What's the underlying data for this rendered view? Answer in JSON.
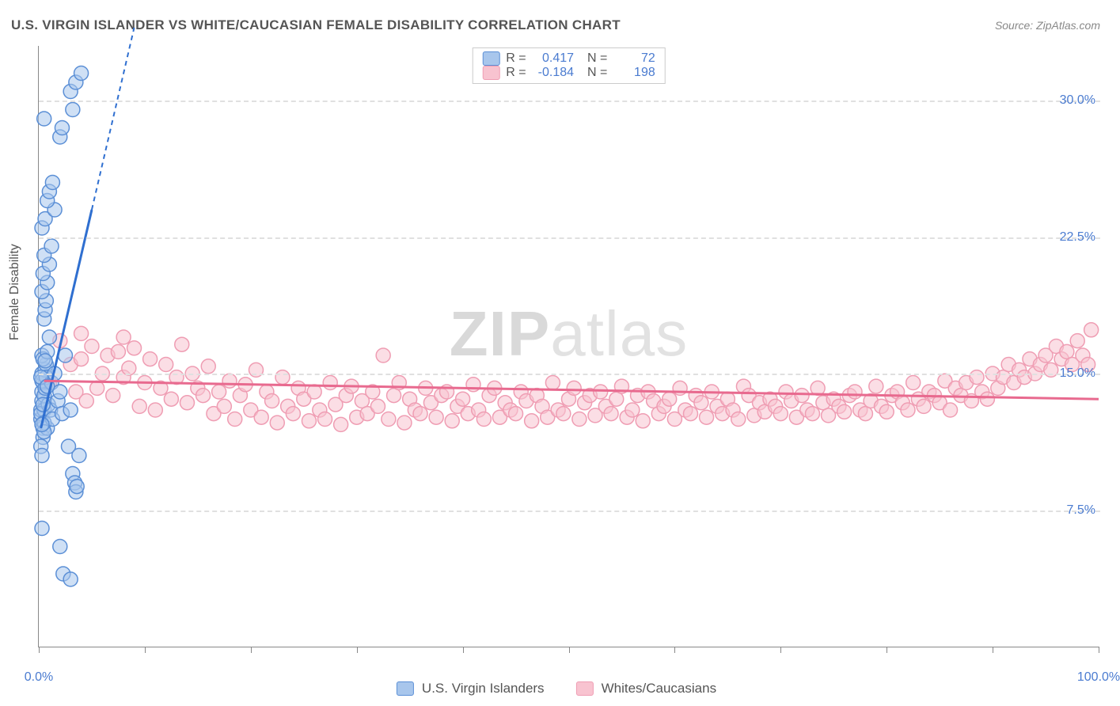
{
  "chart": {
    "type": "scatter",
    "title": "U.S. VIRGIN ISLANDER VS WHITE/CAUCASIAN FEMALE DISABILITY CORRELATION CHART",
    "source": "Source: ZipAtlas.com",
    "ylabel": "Female Disability",
    "watermark": "ZIPatlas",
    "background_color": "#ffffff",
    "grid_color": "#e0e0e0",
    "axis_color": "#888888",
    "label_color": "#555555",
    "tick_label_color": "#4a7bd0",
    "title_fontsize": 17,
    "label_fontsize": 16,
    "tick_fontsize": 16,
    "xlim": [
      0,
      100
    ],
    "ylim": [
      0,
      33
    ],
    "ytick_positions": [
      7.5,
      15.0,
      22.5,
      30.0
    ],
    "ytick_labels": [
      "7.5%",
      "15.0%",
      "22.5%",
      "30.0%"
    ],
    "xtick_positions": [
      0,
      10,
      20,
      30,
      40,
      50,
      60,
      70,
      80,
      90,
      100
    ],
    "xtick_labels_visible": {
      "0": "0.0%",
      "100": "100.0%"
    },
    "marker_radius": 9,
    "marker_opacity": 0.55,
    "trendline_width_solid": 3,
    "trendline_width_dash": 2,
    "series": [
      {
        "name": "U.S. Virgin Islanders",
        "key": "usvi",
        "color_fill": "#a8c6ec",
        "color_stroke": "#5b8fd6",
        "line_color": "#2f6fd0",
        "R": "0.417",
        "N": "72",
        "trend": {
          "x1": 0.2,
          "y1": 12.0,
          "x2": 5.0,
          "y2": 24.0,
          "dash_extend_x": 9.0,
          "dash_extend_y": 34.0
        },
        "points": [
          [
            0.2,
            12.5
          ],
          [
            0.2,
            13.0
          ],
          [
            0.3,
            13.5
          ],
          [
            0.3,
            14.0
          ],
          [
            0.4,
            14.5
          ],
          [
            0.3,
            15.0
          ],
          [
            0.4,
            12.0
          ],
          [
            0.5,
            13.0
          ],
          [
            0.5,
            13.8
          ],
          [
            0.3,
            14.6
          ],
          [
            0.6,
            15.2
          ],
          [
            0.4,
            11.5
          ],
          [
            0.2,
            12.8
          ],
          [
            0.6,
            14.2
          ],
          [
            0.7,
            15.5
          ],
          [
            0.3,
            16.0
          ],
          [
            0.8,
            12.0
          ],
          [
            0.9,
            13.3
          ],
          [
            0.2,
            11.0
          ],
          [
            0.3,
            10.5
          ],
          [
            0.4,
            15.8
          ],
          [
            0.7,
            14.8
          ],
          [
            0.5,
            12.3
          ],
          [
            0.8,
            16.2
          ],
          [
            1.0,
            17.0
          ],
          [
            1.1,
            13.0
          ],
          [
            1.2,
            14.5
          ],
          [
            1.3,
            12.5
          ],
          [
            1.5,
            15.0
          ],
          [
            1.8,
            13.5
          ],
          [
            2.0,
            14.0
          ],
          [
            2.2,
            12.8
          ],
          [
            2.5,
            16.0
          ],
          [
            2.8,
            11.0
          ],
          [
            3.0,
            13.0
          ],
          [
            3.2,
            9.5
          ],
          [
            3.4,
            9.0
          ],
          [
            3.5,
            8.5
          ],
          [
            3.6,
            8.8
          ],
          [
            3.8,
            10.5
          ],
          [
            0.5,
            18.0
          ],
          [
            0.6,
            18.5
          ],
          [
            0.7,
            19.0
          ],
          [
            0.3,
            19.5
          ],
          [
            0.8,
            20.0
          ],
          [
            0.4,
            20.5
          ],
          [
            1.0,
            21.0
          ],
          [
            0.5,
            21.5
          ],
          [
            1.2,
            22.0
          ],
          [
            0.3,
            23.0
          ],
          [
            0.6,
            23.5
          ],
          [
            1.5,
            24.0
          ],
          [
            0.8,
            24.5
          ],
          [
            1.0,
            25.0
          ],
          [
            1.3,
            25.5
          ],
          [
            2.0,
            28.0
          ],
          [
            2.2,
            28.5
          ],
          [
            0.5,
            29.0
          ],
          [
            3.0,
            30.5
          ],
          [
            3.5,
            31.0
          ],
          [
            4.0,
            31.5
          ],
          [
            3.2,
            29.5
          ],
          [
            0.3,
            6.5
          ],
          [
            2.0,
            5.5
          ],
          [
            2.3,
            4.0
          ],
          [
            3.0,
            3.7
          ],
          [
            0.5,
            11.8
          ],
          [
            0.2,
            14.8
          ],
          [
            0.4,
            13.3
          ],
          [
            0.3,
            12.2
          ],
          [
            0.6,
            15.7
          ],
          [
            0.8,
            14.3
          ]
        ]
      },
      {
        "name": "Whites/Caucasians",
        "key": "white",
        "color_fill": "#f8c3d0",
        "color_stroke": "#ef9db3",
        "line_color": "#e86a8f",
        "R": "-0.184",
        "N": "198",
        "trend": {
          "x1": 0.5,
          "y1": 14.6,
          "x2": 100.0,
          "y2": 13.6
        },
        "points": [
          [
            1,
            14.5
          ],
          [
            2,
            16.8
          ],
          [
            3,
            15.5
          ],
          [
            3.5,
            14.0
          ],
          [
            4,
            15.8
          ],
          [
            4.5,
            13.5
          ],
          [
            5,
            16.5
          ],
          [
            5.5,
            14.2
          ],
          [
            6,
            15.0
          ],
          [
            6.5,
            16.0
          ],
          [
            7,
            13.8
          ],
          [
            7.5,
            16.2
          ],
          [
            8,
            14.8
          ],
          [
            8.5,
            15.3
          ],
          [
            9,
            16.4
          ],
          [
            9.5,
            13.2
          ],
          [
            10,
            14.5
          ],
          [
            10.5,
            15.8
          ],
          [
            11,
            13.0
          ],
          [
            11.5,
            14.2
          ],
          [
            12,
            15.5
          ],
          [
            12.5,
            13.6
          ],
          [
            13,
            14.8
          ],
          [
            13.5,
            16.6
          ],
          [
            14,
            13.4
          ],
          [
            14.5,
            15.0
          ],
          [
            15,
            14.2
          ],
          [
            15.5,
            13.8
          ],
          [
            16,
            15.4
          ],
          [
            16.5,
            12.8
          ],
          [
            17,
            14.0
          ],
          [
            17.5,
            13.2
          ],
          [
            18,
            14.6
          ],
          [
            18.5,
            12.5
          ],
          [
            19,
            13.8
          ],
          [
            19.5,
            14.4
          ],
          [
            20,
            13.0
          ],
          [
            20.5,
            15.2
          ],
          [
            21,
            12.6
          ],
          [
            21.5,
            14.0
          ],
          [
            22,
            13.5
          ],
          [
            22.5,
            12.3
          ],
          [
            23,
            14.8
          ],
          [
            23.5,
            13.2
          ],
          [
            24,
            12.8
          ],
          [
            24.5,
            14.2
          ],
          [
            25,
            13.6
          ],
          [
            25.5,
            12.4
          ],
          [
            26,
            14.0
          ],
          [
            26.5,
            13.0
          ],
          [
            27,
            12.5
          ],
          [
            27.5,
            14.5
          ],
          [
            28,
            13.3
          ],
          [
            28.5,
            12.2
          ],
          [
            29,
            13.8
          ],
          [
            29.5,
            14.3
          ],
          [
            30,
            12.6
          ],
          [
            30.5,
            13.5
          ],
          [
            31,
            12.8
          ],
          [
            31.5,
            14.0
          ],
          [
            32,
            13.2
          ],
          [
            32.5,
            16.0
          ],
          [
            33,
            12.5
          ],
          [
            33.5,
            13.8
          ],
          [
            34,
            14.5
          ],
          [
            34.5,
            12.3
          ],
          [
            35,
            13.6
          ],
          [
            35.5,
            13.0
          ],
          [
            36,
            12.8
          ],
          [
            36.5,
            14.2
          ],
          [
            37,
            13.4
          ],
          [
            37.5,
            12.6
          ],
          [
            38,
            13.8
          ],
          [
            38.5,
            14.0
          ],
          [
            39,
            12.4
          ],
          [
            39.5,
            13.2
          ],
          [
            40,
            13.6
          ],
          [
            40.5,
            12.8
          ],
          [
            41,
            14.4
          ],
          [
            41.5,
            13.0
          ],
          [
            42,
            12.5
          ],
          [
            42.5,
            13.8
          ],
          [
            43,
            14.2
          ],
          [
            43.5,
            12.6
          ],
          [
            44,
            13.4
          ],
          [
            44.5,
            13.0
          ],
          [
            45,
            12.8
          ],
          [
            45.5,
            14.0
          ],
          [
            46,
            13.5
          ],
          [
            46.5,
            12.4
          ],
          [
            47,
            13.8
          ],
          [
            47.5,
            13.2
          ],
          [
            48,
            12.6
          ],
          [
            48.5,
            14.5
          ],
          [
            49,
            13.0
          ],
          [
            49.5,
            12.8
          ],
          [
            50,
            13.6
          ],
          [
            50.5,
            14.2
          ],
          [
            51,
            12.5
          ],
          [
            51.5,
            13.4
          ],
          [
            52,
            13.8
          ],
          [
            52.5,
            12.7
          ],
          [
            53,
            14.0
          ],
          [
            53.5,
            13.2
          ],
          [
            54,
            12.8
          ],
          [
            54.5,
            13.6
          ],
          [
            55,
            14.3
          ],
          [
            55.5,
            12.6
          ],
          [
            56,
            13.0
          ],
          [
            56.5,
            13.8
          ],
          [
            57,
            12.4
          ],
          [
            57.5,
            14.0
          ],
          [
            58,
            13.5
          ],
          [
            58.5,
            12.8
          ],
          [
            59,
            13.2
          ],
          [
            59.5,
            13.6
          ],
          [
            60,
            12.5
          ],
          [
            60.5,
            14.2
          ],
          [
            61,
            13.0
          ],
          [
            61.5,
            12.8
          ],
          [
            62,
            13.8
          ],
          [
            62.5,
            13.4
          ],
          [
            63,
            12.6
          ],
          [
            63.5,
            14.0
          ],
          [
            64,
            13.2
          ],
          [
            64.5,
            12.8
          ],
          [
            65,
            13.6
          ],
          [
            65.5,
            13.0
          ],
          [
            66,
            12.5
          ],
          [
            66.5,
            14.3
          ],
          [
            67,
            13.8
          ],
          [
            67.5,
            12.7
          ],
          [
            68,
            13.4
          ],
          [
            68.5,
            12.9
          ],
          [
            69,
            13.6
          ],
          [
            69.5,
            13.2
          ],
          [
            70,
            12.8
          ],
          [
            70.5,
            14.0
          ],
          [
            71,
            13.5
          ],
          [
            71.5,
            12.6
          ],
          [
            72,
            13.8
          ],
          [
            72.5,
            13.0
          ],
          [
            73,
            12.8
          ],
          [
            73.5,
            14.2
          ],
          [
            74,
            13.4
          ],
          [
            74.5,
            12.7
          ],
          [
            75,
            13.6
          ],
          [
            75.5,
            13.2
          ],
          [
            76,
            12.9
          ],
          [
            76.5,
            13.8
          ],
          [
            77,
            14.0
          ],
          [
            77.5,
            13.0
          ],
          [
            78,
            12.8
          ],
          [
            78.5,
            13.5
          ],
          [
            79,
            14.3
          ],
          [
            79.5,
            13.2
          ],
          [
            80,
            12.9
          ],
          [
            80.5,
            13.8
          ],
          [
            81,
            14.0
          ],
          [
            81.5,
            13.4
          ],
          [
            82,
            13.0
          ],
          [
            82.5,
            14.5
          ],
          [
            83,
            13.6
          ],
          [
            83.5,
            13.2
          ],
          [
            84,
            14.0
          ],
          [
            84.5,
            13.8
          ],
          [
            85,
            13.4
          ],
          [
            85.5,
            14.6
          ],
          [
            86,
            13.0
          ],
          [
            86.5,
            14.2
          ],
          [
            87,
            13.8
          ],
          [
            87.5,
            14.5
          ],
          [
            88,
            13.5
          ],
          [
            88.5,
            14.8
          ],
          [
            89,
            14.0
          ],
          [
            89.5,
            13.6
          ],
          [
            90,
            15.0
          ],
          [
            90.5,
            14.2
          ],
          [
            91,
            14.8
          ],
          [
            91.5,
            15.5
          ],
          [
            92,
            14.5
          ],
          [
            92.5,
            15.2
          ],
          [
            93,
            14.8
          ],
          [
            93.5,
            15.8
          ],
          [
            94,
            15.0
          ],
          [
            94.5,
            15.5
          ],
          [
            95,
            16.0
          ],
          [
            95.5,
            15.2
          ],
          [
            96,
            16.5
          ],
          [
            96.5,
            15.8
          ],
          [
            97,
            16.2
          ],
          [
            97.5,
            15.5
          ],
          [
            98,
            16.8
          ],
          [
            98.5,
            16.0
          ],
          [
            99,
            15.5
          ],
          [
            99.3,
            17.4
          ],
          [
            4,
            17.2
          ],
          [
            8,
            17.0
          ]
        ]
      }
    ],
    "bottom_legend": [
      {
        "swatch_fill": "#a8c6ec",
        "swatch_stroke": "#5b8fd6",
        "label": "U.S. Virgin Islanders"
      },
      {
        "swatch_fill": "#f8c3d0",
        "swatch_stroke": "#ef9db3",
        "label": "Whites/Caucasians"
      }
    ]
  }
}
